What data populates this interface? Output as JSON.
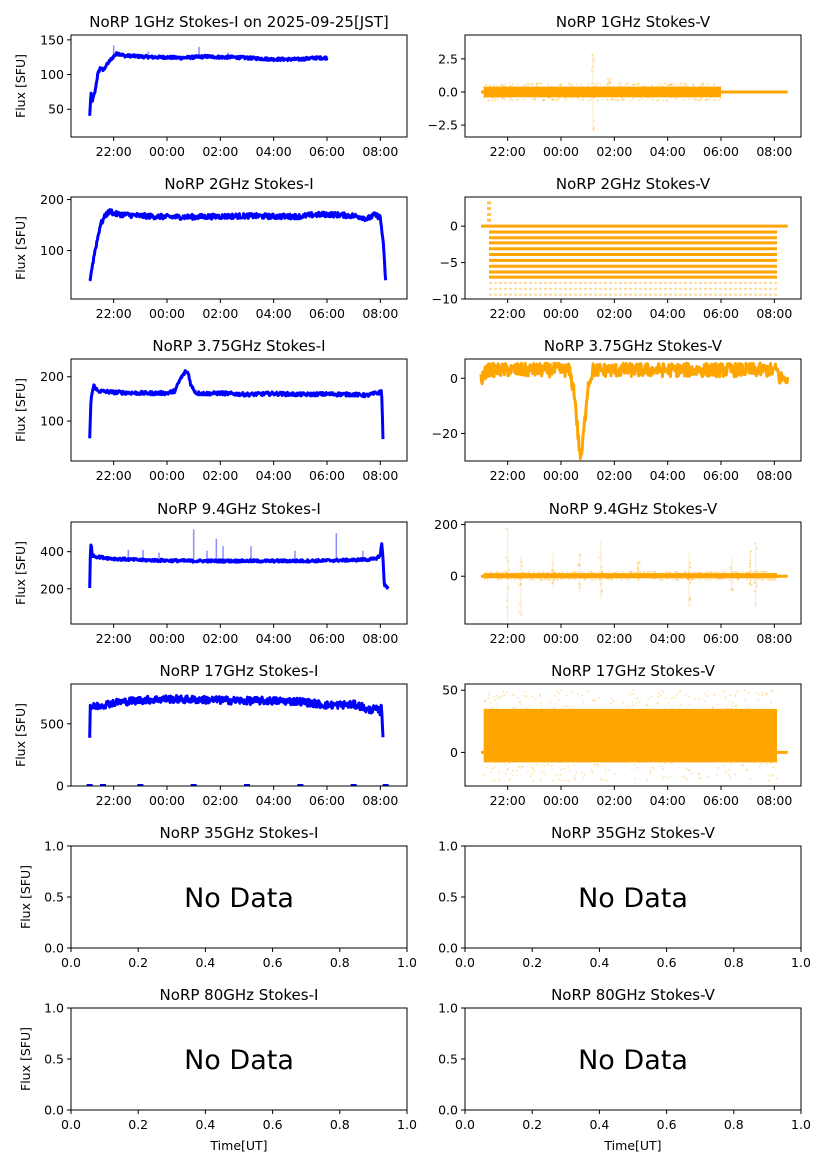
{
  "figure": {
    "x_axis_label_bottom": "Time[UT]",
    "y_axis_label": "Flux [SFU]",
    "no_data_text": "No Data"
  },
  "chart_data": [
    {
      "type": "line",
      "id": "1ghz-i",
      "title": "NoRP 1GHz Stokes-I on 2025-09-25[JST]",
      "ylabel": "Flux [SFU]",
      "color": "#0000ff",
      "xlim": [
        -3.6,
        9.0
      ],
      "ylim": [
        10,
        157
      ],
      "xticks": [
        -2,
        0,
        2,
        4,
        6,
        8
      ],
      "xtick_labels": [
        "22:00",
        "00:00",
        "02:00",
        "04:00",
        "06:00",
        "08:00"
      ],
      "yticks": [
        50,
        100,
        150
      ],
      "ytick_labels": [
        "50",
        "100",
        "150"
      ],
      "x": [
        -2.9,
        -2.85,
        -2.8,
        -2.7,
        -2.6,
        -2.5,
        -2.4,
        -2.3,
        -2.2,
        -2.1,
        -2.0,
        -1.9,
        -1.8,
        -1.6,
        -1.4,
        -1.0,
        -0.5,
        0.0,
        0.5,
        1.0,
        1.5,
        2.0,
        2.5,
        3.0,
        3.5,
        4.0,
        4.5,
        5.0,
        5.5,
        6.0
      ],
      "y": [
        40,
        72,
        62,
        75,
        100,
        110,
        106,
        112,
        117,
        122,
        126,
        130,
        130,
        127,
        127,
        126,
        125,
        125,
        124,
        125,
        126,
        125,
        125,
        124,
        123,
        122,
        122,
        122,
        124,
        124
      ],
      "spikes": [
        {
          "x": -2.0,
          "y": 142
        },
        {
          "x": 1.2,
          "y": 140
        },
        {
          "x": -0.7,
          "y": 133
        },
        {
          "x": 2.3,
          "y": 132
        }
      ],
      "noise": 2
    },
    {
      "type": "scatter-band",
      "id": "1ghz-v",
      "title": "NoRP 1GHz Stokes-V",
      "color": "#ffa500",
      "xlim": [
        -3.6,
        9.0
      ],
      "ylim": [
        -3.4,
        4.3
      ],
      "xticks": [
        -2,
        0,
        2,
        4,
        6,
        8
      ],
      "xtick_labels": [
        "22:00",
        "00:00",
        "02:00",
        "04:00",
        "06:00",
        "08:00"
      ],
      "yticks": [
        -2.5,
        0.0,
        2.5
      ],
      "ytick_labels": [
        "−2.5",
        "0.0",
        "2.5"
      ],
      "band": {
        "x_start": -2.9,
        "x_end": 6.0,
        "center": 0.0,
        "low": -0.4,
        "high": 0.4
      },
      "flat": {
        "x_start": -3.0,
        "x_end": 8.5,
        "y": 0.0
      },
      "outliers": [
        {
          "x": 1.2,
          "y_min": -3.0,
          "y_max": 2.9
        },
        {
          "x": 1.8,
          "y_min": -0.3,
          "y_max": 1.0
        }
      ]
    },
    {
      "type": "line",
      "id": "2ghz-i",
      "title": "NoRP 2GHz Stokes-I",
      "ylabel": "Flux [SFU]",
      "color": "#0000ff",
      "xlim": [
        -3.6,
        9.0
      ],
      "ylim": [
        5,
        205
      ],
      "xticks": [
        -2,
        0,
        2,
        4,
        6,
        8
      ],
      "xtick_labels": [
        "22:00",
        "00:00",
        "02:00",
        "04:00",
        "06:00",
        "08:00"
      ],
      "yticks": [
        100,
        200
      ],
      "ytick_labels": [
        "100",
        "200"
      ],
      "x": [
        -2.9,
        -2.7,
        -2.5,
        -2.3,
        -2.1,
        -2.0,
        -1.5,
        -1.0,
        0.0,
        1.0,
        2.0,
        3.0,
        4.0,
        5.0,
        5.5,
        6.0,
        6.5,
        7.0,
        7.3,
        7.5,
        7.8,
        8.0,
        8.1,
        8.2
      ],
      "y": [
        40,
        100,
        150,
        170,
        178,
        172,
        170,
        168,
        166,
        166,
        167,
        168,
        167,
        167,
        170,
        171,
        170,
        168,
        166,
        162,
        170,
        165,
        120,
        40
      ],
      "spikes": [],
      "noise": 5
    },
    {
      "type": "quantized",
      "id": "2ghz-v",
      "title": "NoRP 2GHz Stokes-V",
      "color": "#ffa500",
      "xlim": [
        -3.6,
        9.0
      ],
      "ylim": [
        -10,
        4
      ],
      "xticks": [
        -2,
        0,
        2,
        4,
        6,
        8
      ],
      "xtick_labels": [
        "22:00",
        "00:00",
        "02:00",
        "04:00",
        "06:00",
        "08:00"
      ],
      "yticks": [
        -10,
        -5,
        0
      ],
      "ytick_labels": [
        "−10",
        "−5",
        "0"
      ],
      "levels": [
        -9.4,
        -8.6,
        -7.8,
        -7.0,
        -6.3,
        -5.5,
        -4.7,
        -3.9,
        -3.1,
        -2.3,
        -1.6,
        -0.8,
        0.0
      ],
      "dense_levels": [
        -7.0,
        -6.3,
        -5.5,
        -4.7,
        -3.9,
        -3.1,
        -2.3,
        -1.6,
        -0.8
      ],
      "x_start": -2.7,
      "x_end": 8.1,
      "flat": {
        "x_start": -3.0,
        "x_end": 8.5,
        "y": 0.0
      },
      "startup_points": [
        {
          "x": -2.7,
          "y": 3.2
        },
        {
          "x": -2.7,
          "y": 2.4
        },
        {
          "x": -2.7,
          "y": 1.6
        },
        {
          "x": -2.7,
          "y": 0.8
        }
      ]
    },
    {
      "type": "line",
      "id": "3.75ghz-i",
      "title": "NoRP 3.75GHz Stokes-I",
      "ylabel": "Flux [SFU]",
      "color": "#0000ff",
      "xlim": [
        -3.6,
        9.0
      ],
      "ylim": [
        10,
        240
      ],
      "xticks": [
        -2,
        0,
        2,
        4,
        6,
        8
      ],
      "xtick_labels": [
        "22:00",
        "00:00",
        "02:00",
        "04:00",
        "06:00",
        "08:00"
      ],
      "yticks": [
        100,
        200
      ],
      "ytick_labels": [
        "100",
        "200"
      ],
      "x": [
        -2.9,
        -2.85,
        -2.75,
        -2.6,
        -2.0,
        -1.0,
        0.0,
        0.3,
        0.5,
        0.7,
        0.8,
        0.9,
        1.1,
        1.5,
        2.0,
        3.0,
        4.0,
        5.0,
        6.0,
        7.0,
        7.5,
        8.0,
        8.05,
        8.1
      ],
      "y": [
        60,
        150,
        180,
        168,
        165,
        163,
        163,
        168,
        195,
        212,
        208,
        180,
        163,
        162,
        163,
        160,
        162,
        160,
        161,
        160,
        158,
        165,
        170,
        60
      ],
      "spikes": [],
      "noise": 4
    },
    {
      "type": "line",
      "id": "3.75ghz-v",
      "title": "NoRP 3.75GHz Stokes-V",
      "color": "#ffa500",
      "xlim": [
        -3.6,
        9.0
      ],
      "ylim": [
        -30,
        7
      ],
      "xticks": [
        -2,
        0,
        2,
        4,
        6,
        8
      ],
      "xtick_labels": [
        "22:00",
        "00:00",
        "02:00",
        "04:00",
        "06:00",
        "08:00"
      ],
      "yticks": [
        -20,
        0
      ],
      "ytick_labels": [
        "−20",
        "0"
      ],
      "x": [
        -3.0,
        -2.9,
        -2.8,
        -2.0,
        -1.0,
        0.0,
        0.3,
        0.5,
        0.65,
        0.75,
        0.85,
        1.0,
        1.2,
        1.5,
        2.0,
        3.0,
        4.0,
        5.0,
        6.0,
        7.0,
        8.0,
        8.1,
        8.2,
        8.5
      ],
      "y": [
        0,
        0,
        3,
        3,
        3,
        3,
        3,
        -5,
        -22,
        -30,
        -20,
        -3,
        3,
        3,
        3,
        3,
        3,
        3,
        3,
        3,
        3,
        3,
        0,
        0
      ],
      "spikes": [],
      "noise": 2.5
    },
    {
      "type": "line",
      "id": "9.4ghz-i",
      "title": "NoRP 9.4GHz Stokes-I",
      "ylabel": "Flux [SFU]",
      "color": "#0000ff",
      "xlim": [
        -3.6,
        9.0
      ],
      "ylim": [
        10,
        560
      ],
      "xticks": [
        -2,
        0,
        2,
        4,
        6,
        8
      ],
      "xtick_labels": [
        "22:00",
        "00:00",
        "02:00",
        "04:00",
        "06:00",
        "08:00"
      ],
      "yticks": [
        200,
        400
      ],
      "ytick_labels": [
        "200",
        "400"
      ],
      "x": [
        -2.9,
        -2.88,
        -2.85,
        -2.8,
        -2.6,
        -2.0,
        -1.0,
        0.0,
        1.0,
        2.0,
        3.0,
        4.0,
        5.0,
        6.0,
        7.0,
        7.8,
        8.0,
        8.05,
        8.1,
        8.15,
        8.3
      ],
      "y": [
        200,
        360,
        450,
        380,
        372,
        362,
        355,
        352,
        350,
        350,
        350,
        350,
        350,
        352,
        355,
        360,
        380,
        450,
        360,
        220,
        205
      ],
      "spikes": [
        {
          "x": 1.0,
          "y": 520
        },
        {
          "x": 1.85,
          "y": 470
        },
        {
          "x": 3.15,
          "y": 430
        },
        {
          "x": 2.1,
          "y": 430
        },
        {
          "x": 6.35,
          "y": 500
        },
        {
          "x": 1.5,
          "y": 405
        },
        {
          "x": -1.45,
          "y": 410
        },
        {
          "x": -0.9,
          "y": 410
        },
        {
          "x": 4.8,
          "y": 405
        },
        {
          "x": 7.35,
          "y": 405
        },
        {
          "x": -0.3,
          "y": 395
        }
      ],
      "noise": 7
    },
    {
      "type": "scatter-band",
      "id": "9.4ghz-v",
      "title": "NoRP 9.4GHz Stokes-V",
      "color": "#ffa500",
      "xlim": [
        -3.6,
        9.0
      ],
      "ylim": [
        -185,
        210
      ],
      "xticks": [
        -2,
        0,
        2,
        4,
        6,
        8
      ],
      "xtick_labels": [
        "22:00",
        "00:00",
        "02:00",
        "04:00",
        "06:00",
        "08:00"
      ],
      "yticks": [
        0,
        200
      ],
      "ytick_labels": [
        "0",
        "200"
      ],
      "band": {
        "x_start": -2.9,
        "x_end": 8.1,
        "center": 0,
        "low": -8,
        "high": 12
      },
      "flat": {
        "x_start": -3.0,
        "x_end": 8.5,
        "y": 0
      },
      "outliers": [
        {
          "x": -2.0,
          "y_min": -180,
          "y_max": 185
        },
        {
          "x": -0.3,
          "y_min": -40,
          "y_max": 90
        },
        {
          "x": 0.7,
          "y_min": -60,
          "y_max": 85
        },
        {
          "x": 1.5,
          "y_min": -90,
          "y_max": 140
        },
        {
          "x": 2.9,
          "y_min": -20,
          "y_max": 60
        },
        {
          "x": 4.8,
          "y_min": -120,
          "y_max": 90
        },
        {
          "x": 6.4,
          "y_min": -60,
          "y_max": 70
        },
        {
          "x": 7.1,
          "y_min": -40,
          "y_max": 100
        },
        {
          "x": 7.3,
          "y_min": -120,
          "y_max": 130
        },
        {
          "x": -1.5,
          "y_min": -150,
          "y_max": 80
        }
      ]
    },
    {
      "type": "line",
      "id": "17ghz-i",
      "title": "NoRP 17GHz Stokes-I",
      "ylabel": "Flux [SFU]",
      "color": "#0000ff",
      "xlim": [
        -3.6,
        9.0
      ],
      "ylim": [
        0,
        820
      ],
      "xticks": [
        -2,
        0,
        2,
        4,
        6,
        8
      ],
      "xtick_labels": [
        "22:00",
        "00:00",
        "02:00",
        "04:00",
        "06:00",
        "08:00"
      ],
      "yticks": [
        0,
        500
      ],
      "ytick_labels": [
        "0",
        "500"
      ],
      "x": [
        -2.9,
        -2.88,
        -2.85,
        -2.7,
        -2.0,
        -1.0,
        0.0,
        1.0,
        2.0,
        3.0,
        4.0,
        5.0,
        5.5,
        6.0,
        7.0,
        7.3,
        7.5,
        7.8,
        8.0,
        8.05,
        8.1
      ],
      "y": [
        400,
        650,
        630,
        640,
        670,
        690,
        700,
        695,
        690,
        685,
        685,
        680,
        665,
        650,
        655,
        640,
        610,
        620,
        600,
        640,
        400
      ],
      "spikes": [],
      "noise": 30,
      "baseline_points": [
        {
          "x": -2.9,
          "y": 0
        },
        {
          "x": -2.4,
          "y": 0
        },
        {
          "x": -1.0,
          "y": 0
        },
        {
          "x": 1.0,
          "y": 0
        },
        {
          "x": 3.0,
          "y": 0
        },
        {
          "x": 5.0,
          "y": 0
        },
        {
          "x": 7.0,
          "y": 0
        },
        {
          "x": 8.2,
          "y": 0
        }
      ]
    },
    {
      "type": "scatter-band",
      "id": "17ghz-v",
      "title": "NoRP 17GHz Stokes-V",
      "color": "#ffa500",
      "xlim": [
        -3.6,
        9.0
      ],
      "ylim": [
        -27,
        55
      ],
      "xticks": [
        -2,
        0,
        2,
        4,
        6,
        8
      ],
      "xtick_labels": [
        "22:00",
        "00:00",
        "02:00",
        "04:00",
        "06:00",
        "08:00"
      ],
      "yticks": [
        0,
        50
      ],
      "ytick_labels": [
        "0",
        "50"
      ],
      "band": {
        "x_start": -2.9,
        "x_end": 8.1,
        "center": 12,
        "low": -8,
        "high": 35
      },
      "flat": {
        "x_start": -3.0,
        "x_end": 8.5,
        "y": 0
      },
      "outliers": []
    },
    {
      "type": "empty",
      "id": "35ghz-i",
      "title": "NoRP 35GHz Stokes-I",
      "ylabel": "Flux [SFU]",
      "xlim": [
        0,
        1
      ],
      "ylim": [
        0,
        1
      ],
      "xticks": [
        0,
        0.2,
        0.4,
        0.6,
        0.8,
        1.0
      ],
      "xtick_labels": [
        "0.0",
        "0.2",
        "0.4",
        "0.6",
        "0.8",
        "1.0"
      ],
      "yticks": [
        0,
        0.5,
        1.0
      ],
      "ytick_labels": [
        "0.0",
        "0.5",
        "1.0"
      ],
      "annotation": "No Data"
    },
    {
      "type": "empty",
      "id": "35ghz-v",
      "title": "NoRP 35GHz Stokes-V",
      "xlim": [
        0,
        1
      ],
      "ylim": [
        0,
        1
      ],
      "xticks": [
        0,
        0.2,
        0.4,
        0.6,
        0.8,
        1.0
      ],
      "xtick_labels": [
        "0.0",
        "0.2",
        "0.4",
        "0.6",
        "0.8",
        "1.0"
      ],
      "yticks": [
        0,
        0.5,
        1.0
      ],
      "ytick_labels": [
        "0.0",
        "0.5",
        "1.0"
      ],
      "annotation": "No Data"
    },
    {
      "type": "empty",
      "id": "80ghz-i",
      "title": "NoRP 80GHz Stokes-I",
      "ylabel": "Flux [SFU]",
      "xlabel": "Time[UT]",
      "xlim": [
        0,
        1
      ],
      "ylim": [
        0,
        1
      ],
      "xticks": [
        0,
        0.2,
        0.4,
        0.6,
        0.8,
        1.0
      ],
      "xtick_labels": [
        "0.0",
        "0.2",
        "0.4",
        "0.6",
        "0.8",
        "1.0"
      ],
      "yticks": [
        0,
        0.5,
        1.0
      ],
      "ytick_labels": [
        "0.0",
        "0.5",
        "1.0"
      ],
      "annotation": "No Data"
    },
    {
      "type": "empty",
      "id": "80ghz-v",
      "title": "NoRP 80GHz Stokes-V",
      "xlabel": "Time[UT]",
      "xlim": [
        0,
        1
      ],
      "ylim": [
        0,
        1
      ],
      "xticks": [
        0,
        0.2,
        0.4,
        0.6,
        0.8,
        1.0
      ],
      "xtick_labels": [
        "0.0",
        "0.2",
        "0.4",
        "0.6",
        "0.8",
        "1.0"
      ],
      "yticks": [
        0,
        0.5,
        1.0
      ],
      "ytick_labels": [
        "0.0",
        "0.5",
        "1.0"
      ],
      "annotation": "No Data"
    }
  ]
}
